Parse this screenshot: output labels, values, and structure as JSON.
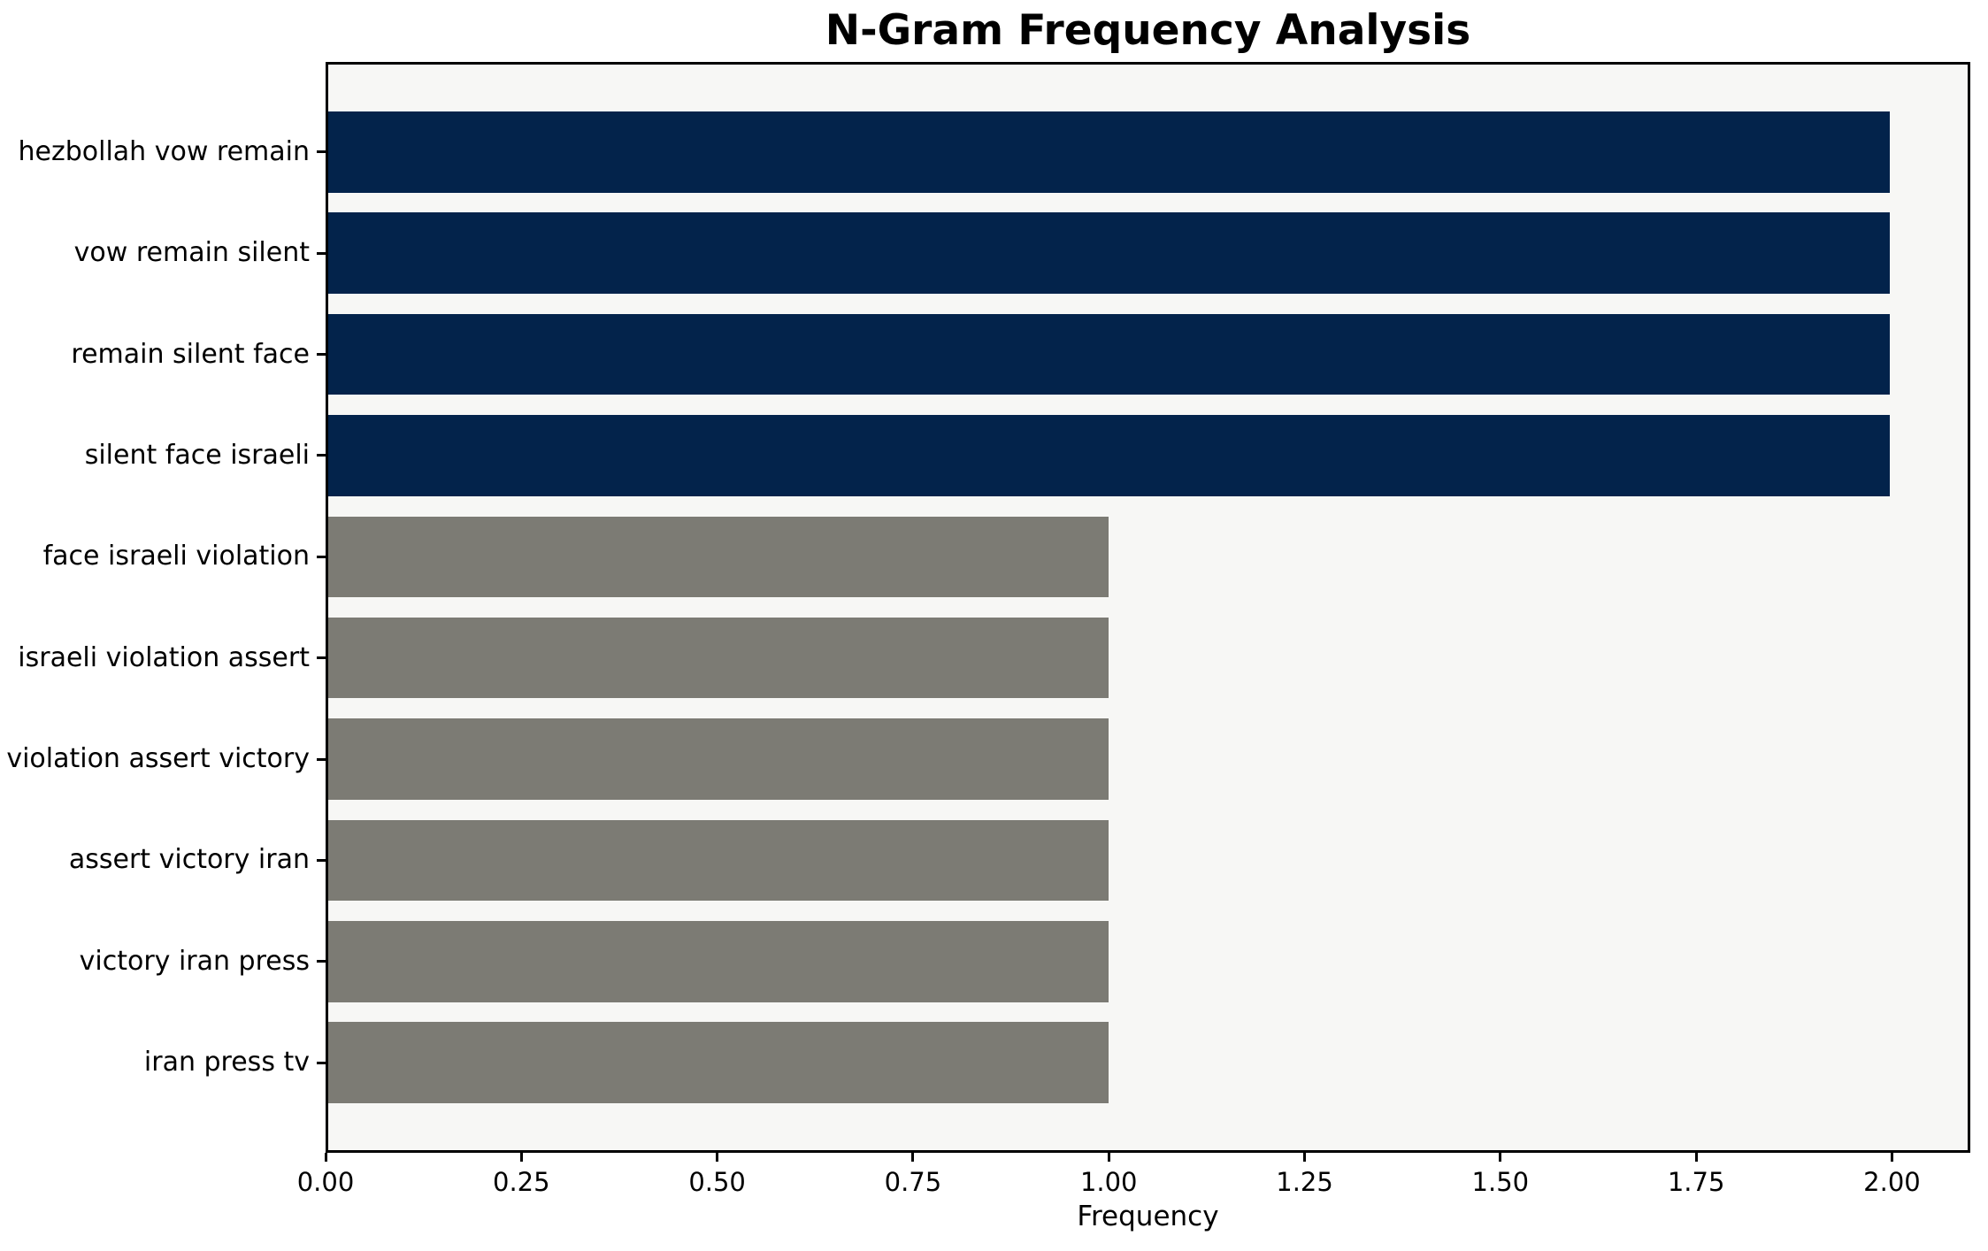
{
  "chart_data": {
    "type": "bar",
    "orientation": "horizontal",
    "title": "N-Gram Frequency Analysis",
    "xlabel": "Frequency",
    "ylabel": "",
    "categories": [
      "hezbollah vow remain",
      "vow remain silent",
      "remain silent face",
      "silent face israeli",
      "face israeli violation",
      "israeli violation assert",
      "violation assert victory",
      "assert victory iran",
      "victory iran press",
      "iran press tv"
    ],
    "values": [
      2,
      2,
      2,
      2,
      1,
      1,
      1,
      1,
      1,
      1
    ],
    "bar_colors": [
      "#03234b",
      "#03234b",
      "#03234b",
      "#03234b",
      "#7c7b74",
      "#7c7b74",
      "#7c7b74",
      "#7c7b74",
      "#7c7b74",
      "#7c7b74"
    ],
    "xlim": [
      0,
      2.1
    ],
    "xtick_values": [
      0,
      0.25,
      0.5,
      0.75,
      1.0,
      1.25,
      1.5,
      1.75,
      2.0
    ],
    "xtick_labels": [
      "0.00",
      "0.25",
      "0.50",
      "0.75",
      "1.00",
      "1.25",
      "1.50",
      "1.75",
      "2.00"
    ],
    "grid": false,
    "legend": "none",
    "plot_background": "#f7f7f5",
    "figure_background": "#ffffff",
    "spine_color": "#000000",
    "text_color": "#000000"
  }
}
